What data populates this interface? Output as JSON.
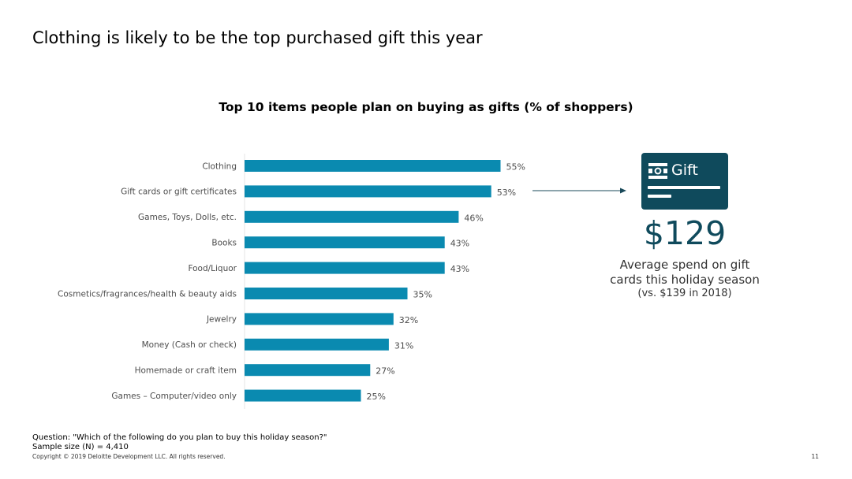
{
  "slide": {
    "title": "Clothing is likely to be the top purchased gift this year",
    "question": "Question: \"Which of the following do you plan to buy this holiday season?\"",
    "sample_size": "Sample size (N) = 4,410",
    "copyright": "Copyright © 2019 Deloitte Development LLC. All rights reserved.",
    "page_number": "11"
  },
  "chart_data": {
    "type": "bar",
    "orientation": "horizontal",
    "title": "Top 10 items people plan on buying as gifts (% of shoppers)",
    "categories": [
      "Clothing",
      "Gift cards or gift certificates",
      "Games, Toys, Dolls, etc.",
      "Books",
      "Food/Liquor",
      "Cosmetics/fragrances/health & beauty aids",
      "Jewelry",
      "Money (Cash or check)",
      "Homemade or craft item",
      "Games – Computer/video only"
    ],
    "values": [
      55,
      53,
      46,
      43,
      43,
      35,
      32,
      31,
      27,
      25
    ],
    "value_labels": [
      "55%",
      "53%",
      "46%",
      "43%",
      "43%",
      "35%",
      "32%",
      "31%",
      "27%",
      "25%"
    ],
    "bar_color": "#0a8ab0",
    "xlim": [
      0,
      100
    ],
    "grid": false,
    "legend": "none"
  },
  "callout": {
    "card_label": "Gift",
    "card_color": "#0f4a5c",
    "icon": "gift-card-icon",
    "amount": "$129",
    "line1": "Average spend on gift",
    "line2": "cards this holiday season",
    "line3": "(vs. $139 in 2018)",
    "accent_color": "#0f4a5c",
    "arrow_color": "#1a4a5a"
  }
}
